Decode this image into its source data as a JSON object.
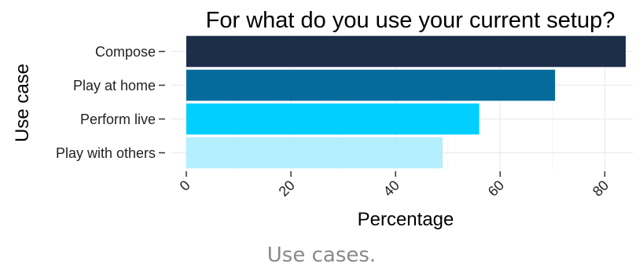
{
  "chart_data": {
    "type": "bar",
    "orientation": "horizontal",
    "title": "For what do you use your current setup?",
    "xlabel": "Percentage",
    "ylabel": "Use case",
    "categories": [
      "Compose",
      "Play at home",
      "Perform live",
      "Play with others"
    ],
    "values": [
      84,
      70.5,
      56,
      49
    ],
    "colors": [
      "#1c2e4a",
      "#056b9c",
      "#00cfff",
      "#b3efff"
    ],
    "xlim": [
      0,
      85
    ],
    "xticks": [
      "0",
      "20",
      "40",
      "60",
      "80"
    ],
    "grid": true,
    "legend": "none"
  },
  "caption": "Use cases."
}
